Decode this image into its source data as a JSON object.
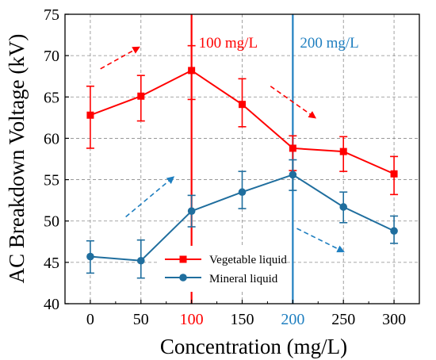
{
  "chart_data": {
    "type": "line",
    "title": "",
    "xlabel": "Concentration (mg/L)",
    "ylabel": "AC Breakdown Voltage (kV)",
    "x": [
      0,
      50,
      100,
      150,
      200,
      250,
      300
    ],
    "xlim": [
      -25,
      325
    ],
    "ylim": [
      40,
      75
    ],
    "xticks": [
      0,
      50,
      100,
      150,
      200,
      250,
      300
    ],
    "xtick_labels": [
      "0",
      "50",
      "100",
      "150",
      "200",
      "250",
      "300"
    ],
    "yticks": [
      40,
      45,
      50,
      55,
      60,
      65,
      70,
      75
    ],
    "ytick_labels": [
      "40",
      "45",
      "50",
      "55",
      "60",
      "65",
      "70",
      "75"
    ],
    "grid": true,
    "legend_position": "lower-center",
    "series": [
      {
        "name": "Vegetable liquid",
        "color": "#ff0000",
        "marker": "square",
        "values": [
          62.8,
          65.1,
          68.2,
          64.1,
          58.8,
          58.4,
          55.7
        ],
        "error_low": [
          58.8,
          62.1,
          64.7,
          61.4,
          56.1,
          56.0,
          53.2
        ],
        "error_high": [
          66.3,
          67.6,
          71.2,
          67.2,
          60.3,
          60.2,
          57.8
        ]
      },
      {
        "name": "Mineral liquid",
        "color": "#1f6e9e",
        "marker": "circle",
        "values": [
          45.7,
          45.2,
          51.2,
          53.5,
          55.6,
          51.7,
          48.8
        ],
        "error_low": [
          43.7,
          43.1,
          49.3,
          51.5,
          53.7,
          49.8,
          47.3
        ],
        "error_high": [
          47.6,
          47.7,
          53.1,
          56.0,
          57.4,
          53.5,
          50.6
        ]
      }
    ],
    "reference_lines": [
      {
        "x": 100,
        "label": "100 mg/L",
        "color": "#ff0000"
      },
      {
        "x": 200,
        "label": "200 mg/L",
        "color": "#1f7fc0"
      }
    ],
    "highlighted_ticks": [
      {
        "value": "100",
        "color": "#ff0000"
      },
      {
        "value": "200",
        "color": "#1f7fc0"
      }
    ],
    "trend_arrows": [
      {
        "from": [
          10,
          68.4
        ],
        "to": [
          48,
          71.0
        ],
        "color": "#ff0000"
      },
      {
        "from": [
          178,
          66.3
        ],
        "to": [
          222,
          62.5
        ],
        "color": "#ff0000"
      },
      {
        "from": [
          35,
          50.5
        ],
        "to": [
          82,
          55.3
        ],
        "color": "#1f7fc0"
      },
      {
        "from": [
          204,
          49.1
        ],
        "to": [
          250,
          46.3
        ],
        "color": "#1f7fc0"
      }
    ]
  }
}
